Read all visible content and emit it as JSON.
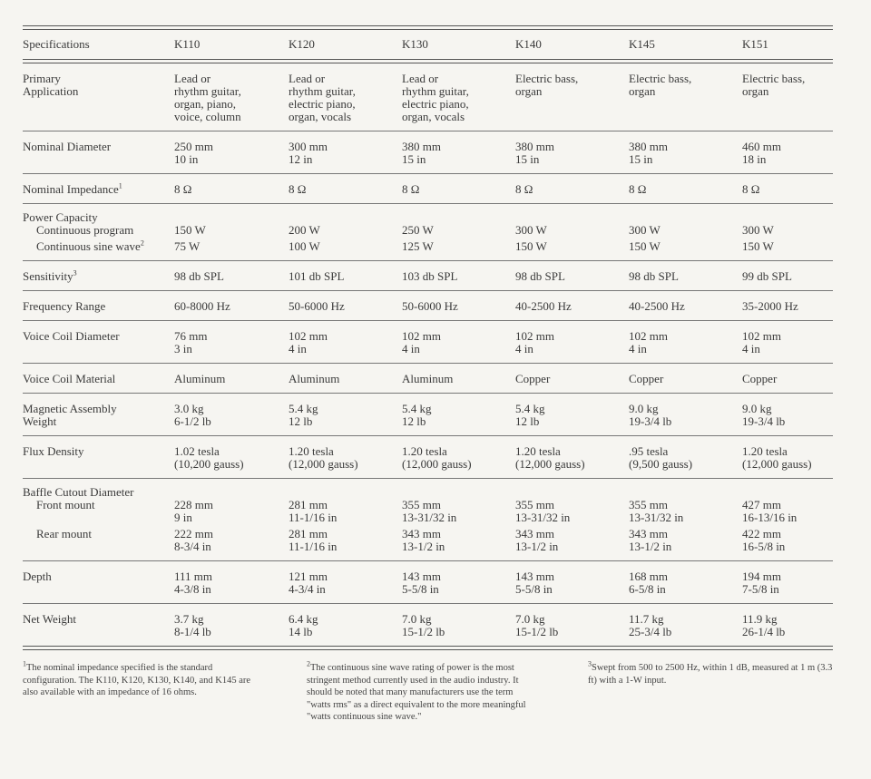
{
  "header": {
    "label": "Specifications",
    "models": [
      "K110",
      "K120",
      "K130",
      "K140",
      "K145",
      "K151"
    ]
  },
  "rows": [
    {
      "label": "Primary\nApplication",
      "values": [
        "Lead or\nrhythm guitar,\norgan, piano,\nvoice, column",
        "Lead or\nrhythm guitar,\nelectric piano,\norgan, vocals",
        "Lead or\nrhythm guitar,\nelectric piano,\norgan, vocals",
        "Electric bass,\norgan",
        "Electric bass,\norgan",
        "Electric bass,\norgan"
      ]
    },
    {
      "label": "Nominal Diameter",
      "values": [
        "250 mm\n10 in",
        "300 mm\n12 in",
        "380 mm\n15 in",
        "380 mm\n15 in",
        "380 mm\n15 in",
        "460 mm\n18 in"
      ]
    },
    {
      "label": "Nominal Impedance",
      "sup": "1",
      "values": [
        "8 Ω",
        "8 Ω",
        "8 Ω",
        "8 Ω",
        "8 Ω",
        "8 Ω"
      ]
    },
    {
      "label": "Power Capacity",
      "subrows": [
        {
          "label": "Continuous program",
          "values": [
            "150 W",
            "200 W",
            "250 W",
            "300 W",
            "300 W",
            "300 W"
          ]
        },
        {
          "label": "Continuous sine wave",
          "sup": "2",
          "values": [
            "75 W",
            "100 W",
            "125 W",
            "150 W",
            "150 W",
            "150 W"
          ]
        }
      ]
    },
    {
      "label": "Sensitivity",
      "sup": "3",
      "values": [
        "98 db SPL",
        "101 db SPL",
        "103 db SPL",
        "98 db SPL",
        "98 db SPL",
        "99 db SPL"
      ]
    },
    {
      "label": "Frequency Range",
      "values": [
        "60-8000 Hz",
        "50-6000 Hz",
        "50-6000 Hz",
        "40-2500 Hz",
        "40-2500 Hz",
        "35-2000 Hz"
      ]
    },
    {
      "label": "Voice Coil Diameter",
      "values": [
        "76 mm\n3 in",
        "102 mm\n4 in",
        "102 mm\n4 in",
        "102 mm\n4 in",
        "102 mm\n4 in",
        "102 mm\n4 in"
      ]
    },
    {
      "label": "Voice Coil Material",
      "values": [
        "Aluminum",
        "Aluminum",
        "Aluminum",
        "Copper",
        "Copper",
        "Copper"
      ]
    },
    {
      "label": "Magnetic Assembly\nWeight",
      "values": [
        "3.0 kg\n6-1/2 lb",
        "5.4 kg\n12 lb",
        "5.4 kg\n12 lb",
        "5.4 kg\n12 lb",
        "9.0 kg\n19-3/4 lb",
        "9.0 kg\n19-3/4 lb"
      ]
    },
    {
      "label": "Flux Density",
      "values": [
        "1.02 tesla\n(10,200 gauss)",
        "1.20 tesla\n(12,000 gauss)",
        "1.20 tesla\n(12,000 gauss)",
        "1.20 tesla\n(12,000 gauss)",
        ".95 tesla\n(9,500 gauss)",
        "1.20 tesla\n(12,000 gauss)"
      ]
    },
    {
      "label": "Baffle Cutout Diameter",
      "subrows": [
        {
          "label": "Front mount",
          "values": [
            "228 mm\n9 in",
            "281 mm\n11-1/16 in",
            "355 mm\n13-31/32 in",
            "355 mm\n13-31/32 in",
            "355 mm\n13-31/32 in",
            "427 mm\n16-13/16 in"
          ]
        },
        {
          "label": "Rear mount",
          "values": [
            "222 mm\n8-3/4 in",
            "281 mm\n11-1/16 in",
            "343 mm\n13-1/2 in",
            "343 mm\n13-1/2 in",
            "343 mm\n13-1/2 in",
            "422 mm\n16-5/8 in"
          ]
        }
      ]
    },
    {
      "label": "Depth",
      "values": [
        "111 mm\n4-3/8 in",
        "121 mm\n4-3/4 in",
        "143 mm\n5-5/8 in",
        "143 mm\n5-5/8 in",
        "168 mm\n6-5/8 in",
        "194 mm\n7-5/8 in"
      ]
    },
    {
      "label": "Net Weight",
      "values": [
        "3.7 kg\n8-1/4 lb",
        "6.4 kg\n14 lb",
        "7.0 kg\n15-1/2 lb",
        "7.0 kg\n15-1/2 lb",
        "11.7 kg\n25-3/4 lb",
        "11.9 kg\n26-1/4 lb"
      ]
    }
  ],
  "footnotes": [
    {
      "mark": "1",
      "text": "The nominal impedance specified is the standard configuration. The K110, K120, K130, K140, and K145 are also available with an impedance of 16 ohms."
    },
    {
      "mark": "2",
      "text": "The continuous sine wave rating of power is the most stringent method currently used in the audio industry. It should be noted that many manufacturers use the term \"watts rms\" as a direct equivalent to the more meaningful \"watts continuous sine wave.\""
    },
    {
      "mark": "3",
      "text": "Swept from 500 to 2500 Hz, within 1 dB, measured at 1 m (3.3 ft) with a 1-W input."
    }
  ]
}
